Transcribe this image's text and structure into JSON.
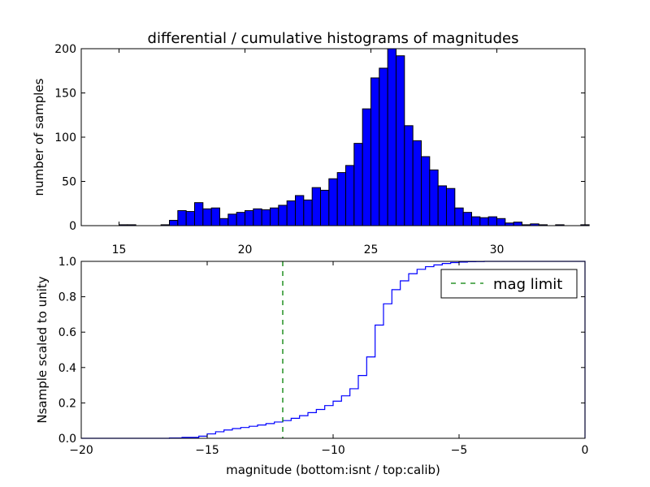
{
  "chart_data": [
    {
      "type": "bar",
      "title": "differential / cumulative histograms of magnitudes",
      "xlabel": "",
      "ylabel": "number of samples",
      "xlim": [
        13.5,
        33.5
      ],
      "ylim": [
        0,
        200
      ],
      "xticks": [
        "15",
        "20",
        "25",
        "30"
      ],
      "yticks": [
        "0",
        "50",
        "100",
        "150",
        "200"
      ],
      "bar_color": "#0000ff",
      "bin_edges": [
        15.0,
        15.333,
        15.667,
        16.0,
        16.333,
        16.667,
        17.0,
        17.333,
        17.667,
        18.0,
        18.333,
        18.667,
        19.0,
        19.333,
        19.667,
        20.0,
        20.333,
        20.667,
        21.0,
        21.333,
        21.667,
        22.0,
        22.333,
        22.667,
        23.0,
        23.333,
        23.667,
        24.0,
        24.333,
        24.667,
        25.0,
        25.333,
        25.667,
        26.0,
        26.333,
        26.667,
        27.0,
        27.333,
        27.667,
        28.0,
        28.333,
        28.667,
        29.0,
        29.333,
        29.667,
        30.0,
        30.333,
        30.667,
        31.0,
        31.333,
        31.667,
        32.0,
        32.333,
        32.667,
        33.0,
        33.333
      ],
      "values": [
        1,
        1,
        0,
        0,
        0,
        1,
        6,
        17,
        16,
        26,
        19,
        20,
        8,
        13,
        15,
        17,
        19,
        18,
        20,
        23,
        28,
        34,
        29,
        43,
        40,
        53,
        60,
        68,
        93,
        132,
        167,
        178,
        200,
        192,
        113,
        96,
        78,
        63,
        45,
        42,
        20,
        15,
        10,
        9,
        10,
        8,
        3,
        4,
        1,
        2,
        1,
        0,
        1,
        0,
        0,
        1
      ]
    },
    {
      "type": "line",
      "title": "",
      "xlabel": "magnitude (bottom:isnt / top:calib)",
      "ylabel": "Nsample scaled to unity",
      "xlim": [
        -20,
        0
      ],
      "ylim": [
        0,
        1
      ],
      "xticks": [
        "−20",
        "−15",
        "−10",
        "−5",
        "0"
      ],
      "yticks": [
        "0.0",
        "0.2",
        "0.4",
        "0.6",
        "0.8",
        "1.0"
      ],
      "line_color": "#0000ff",
      "x": [
        -20.0,
        -16.5,
        -16.0,
        -15.333,
        -15.0,
        -14.667,
        -14.333,
        -14.0,
        -13.667,
        -13.333,
        -13.0,
        -12.667,
        -12.333,
        -12.0,
        -11.667,
        -11.333,
        -11.0,
        -10.667,
        -10.333,
        -10.0,
        -9.667,
        -9.333,
        -9.0,
        -8.667,
        -8.333,
        -8.0,
        -7.667,
        -7.333,
        -7.0,
        -6.667,
        -6.333,
        -6.0,
        -5.667,
        -5.333,
        -5.0,
        -4.667,
        -4.333,
        -4.0,
        0.0
      ],
      "y": [
        0.0,
        0.002,
        0.005,
        0.012,
        0.025,
        0.037,
        0.047,
        0.055,
        0.061,
        0.068,
        0.075,
        0.083,
        0.092,
        0.1,
        0.113,
        0.128,
        0.145,
        0.163,
        0.185,
        0.21,
        0.24,
        0.28,
        0.355,
        0.46,
        0.64,
        0.76,
        0.84,
        0.89,
        0.93,
        0.955,
        0.97,
        0.98,
        0.988,
        0.993,
        0.996,
        0.998,
        0.999,
        1.0,
        1.0
      ],
      "vline": {
        "x": -12,
        "label": "mag limit",
        "color": "#007f00"
      },
      "legend_loc": "top-right"
    }
  ]
}
